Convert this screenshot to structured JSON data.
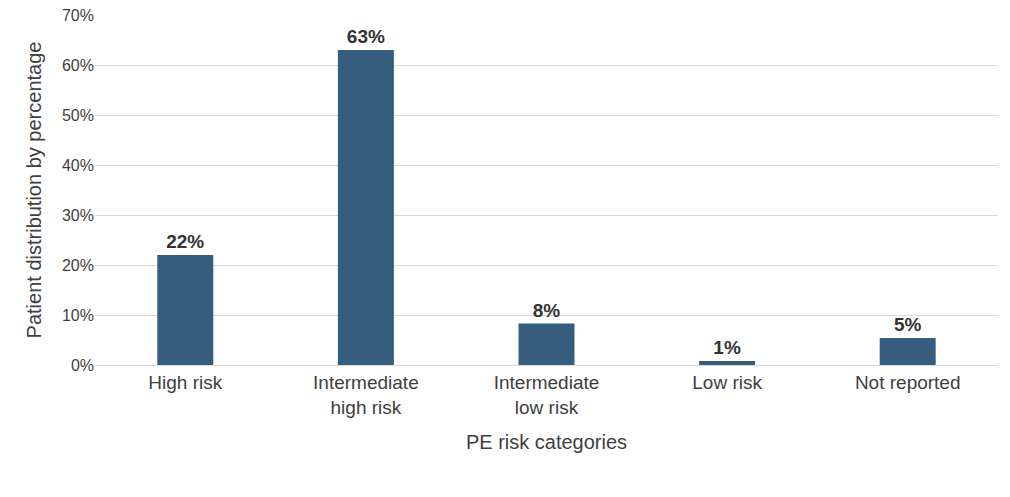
{
  "chart_data": {
    "type": "bar",
    "x_label": "PE risk categories",
    "y_label": "Patient distribution by percentage",
    "categories": [
      "High risk",
      "Intermediate high risk",
      "Intermediate low risk",
      "Low risk",
      "Not reported"
    ],
    "values": [
      22,
      63,
      8.3,
      0.8,
      5.4
    ],
    "value_labels": [
      "22%",
      "63%",
      "8%",
      "1%",
      "5%"
    ],
    "color": "#375d7e",
    "ylim": [
      0,
      70
    ],
    "yticks": [
      {
        "value": 0,
        "label": "0%"
      },
      {
        "value": 10,
        "label": "10%"
      },
      {
        "value": 20,
        "label": "20%"
      },
      {
        "value": 30,
        "label": "30%"
      },
      {
        "value": 40,
        "label": "40%"
      },
      {
        "value": 50,
        "label": "50%"
      },
      {
        "value": 60,
        "label": "60%"
      },
      {
        "value": 70,
        "label": "70%"
      }
    ],
    "grid": true,
    "data_labels": true
  }
}
